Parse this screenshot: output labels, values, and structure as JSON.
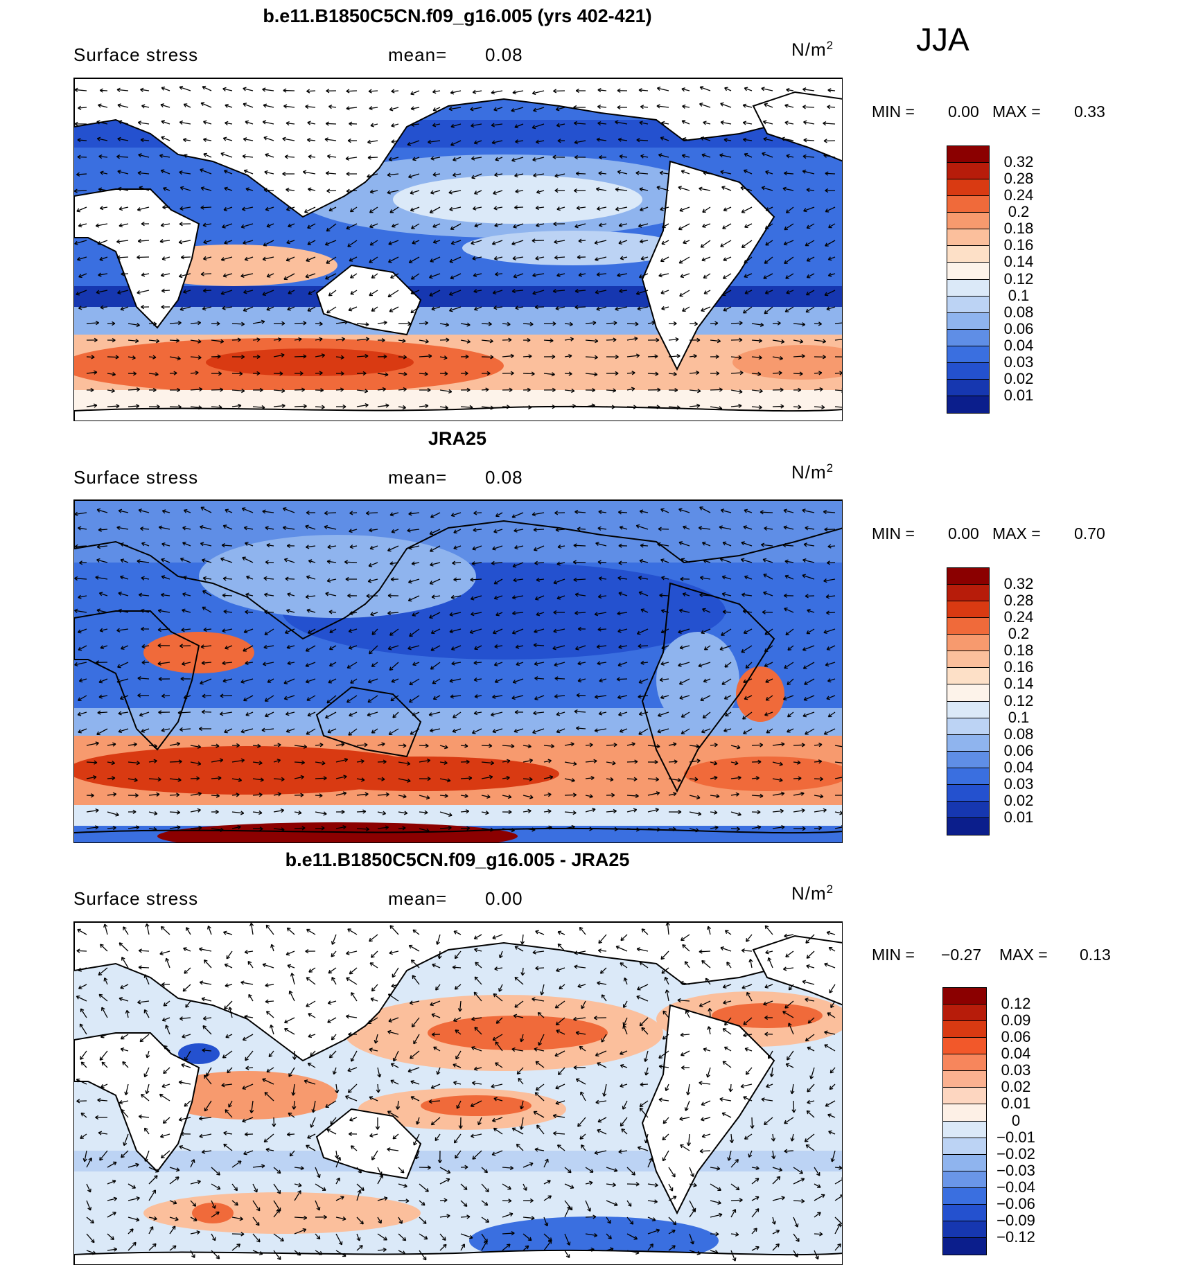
{
  "season": "JJA",
  "panels": [
    {
      "title": "b.e11.B1850C5CN.f09_g16.005 (yrs 402-421)",
      "variable": "Surface stress",
      "mean_label": "mean=",
      "mean_value": "0.08",
      "units": "N/m",
      "units_exp": "2",
      "min_label": "MIN =",
      "min_value": "0.00",
      "max_label": "MAX =",
      "max_value": "0.33",
      "colorbar": {
        "labels": [
          "0.32",
          "0.28",
          "0.24",
          "0.2",
          "0.18",
          "0.16",
          "0.14",
          "0.12",
          "0.1",
          "0.08",
          "0.06",
          "0.04",
          "0.03",
          "0.02",
          "0.01"
        ],
        "colors": [
          "#8b0000",
          "#b71c0a",
          "#d93a12",
          "#f06a3a",
          "#f79a6e",
          "#fbbf9c",
          "#fde0c7",
          "#fdf3ea",
          "#dbe9f8",
          "#bcd3f4",
          "#8fb4ee",
          "#5f8ee6",
          "#3a6fe0",
          "#2451cf",
          "#1637b0",
          "#0b1e8c"
        ]
      }
    },
    {
      "title": "JRA25",
      "variable": "Surface stress",
      "mean_label": "mean=",
      "mean_value": "0.08",
      "units": "N/m",
      "units_exp": "2",
      "min_label": "MIN =",
      "min_value": "0.00",
      "max_label": "MAX =",
      "max_value": "0.70",
      "colorbar": {
        "labels": [
          "0.32",
          "0.28",
          "0.24",
          "0.2",
          "0.18",
          "0.16",
          "0.14",
          "0.12",
          "0.1",
          "0.08",
          "0.06",
          "0.04",
          "0.03",
          "0.02",
          "0.01"
        ],
        "colors": [
          "#8b0000",
          "#b71c0a",
          "#d93a12",
          "#f06a3a",
          "#f79a6e",
          "#fbbf9c",
          "#fde0c7",
          "#fdf3ea",
          "#dbe9f8",
          "#bcd3f4",
          "#8fb4ee",
          "#5f8ee6",
          "#3a6fe0",
          "#2451cf",
          "#1637b0",
          "#0b1e8c"
        ]
      }
    },
    {
      "title": "b.e11.B1850C5CN.f09_g16.005 - JRA25",
      "variable": "Surface stress",
      "mean_label": "mean=",
      "mean_value": "0.00",
      "units": "N/m",
      "units_exp": "2",
      "min_label": "MIN =",
      "min_value": "−0.27",
      "max_label": "MAX =",
      "max_value": "0.13",
      "colorbar": {
        "labels": [
          "0.12",
          "0.09",
          "0.06",
          "0.04",
          "0.03",
          "0.02",
          "0.01",
          "0",
          "−0.01",
          "−0.02",
          "−0.03",
          "−0.04",
          "−0.06",
          "−0.09",
          "−0.12"
        ],
        "colors": [
          "#8b0000",
          "#b71c0a",
          "#d93a12",
          "#f2582a",
          "#f7865c",
          "#fbb190",
          "#fdd6c0",
          "#fdf0e6",
          "#dbe9f8",
          "#bcd3f4",
          "#8fb4ee",
          "#6a96e8",
          "#3a6fe0",
          "#2451cf",
          "#1637b0",
          "#0b1e8c"
        ]
      }
    }
  ]
}
